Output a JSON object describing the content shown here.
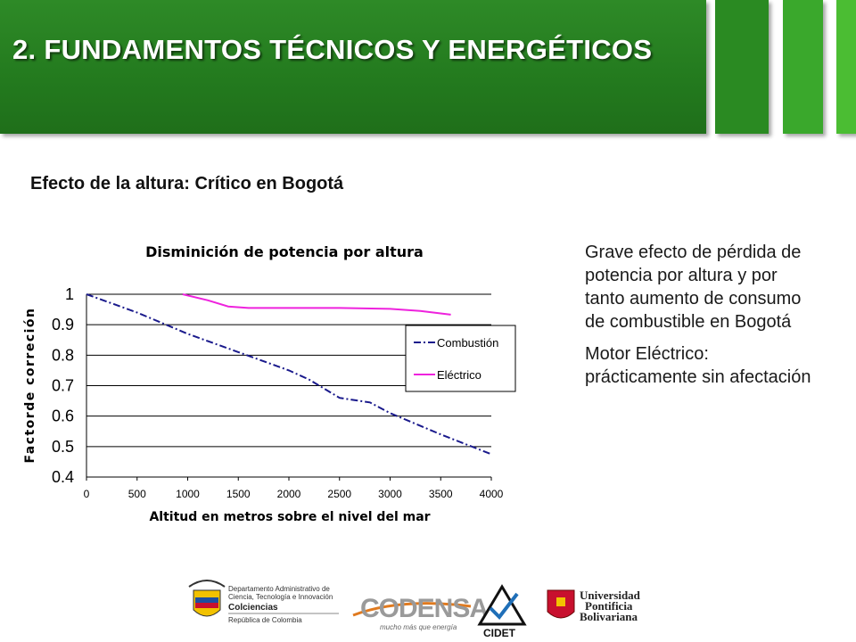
{
  "header": {
    "title": "2. FUNDAMENTOS TÉCNICOS Y ENERGÉTICOS"
  },
  "subtitle": "Efecto de la altura: Crítico en Bogotá",
  "bullets": [
    "Grave efecto de pérdida de potencia por altura y por tanto aumento de consumo de combustible en Bogotá",
    "Motor Eléctrico: prácticamente sin afectación"
  ],
  "chart_data": {
    "type": "line",
    "title": "Disminición de potencia  por altura",
    "xlabel": "Altitud en metros sobre el nivel del mar",
    "ylabel": "Factorde correción",
    "xlim": [
      0,
      4000
    ],
    "ylim": [
      0.4,
      1.0
    ],
    "xticks": [
      0,
      500,
      1000,
      1500,
      2000,
      2500,
      3000,
      3500,
      4000
    ],
    "yticks": [
      0.4,
      0.5,
      0.6,
      0.7,
      0.8,
      0.9,
      1.0
    ],
    "ytick_labels": [
      "0.4",
      "0.5",
      "0.6",
      "0.7",
      "0.8",
      "0.9",
      "1"
    ],
    "grid": "horizontal",
    "legend": "right",
    "series": [
      {
        "name": "Combustión",
        "color": "#1a1a8c",
        "style": "dash-dot",
        "x": [
          0,
          500,
          1000,
          1500,
          2000,
          2200,
          2500,
          2800,
          3000,
          3500,
          4000
        ],
        "y": [
          1.0,
          0.94,
          0.87,
          0.81,
          0.75,
          0.72,
          0.66,
          0.645,
          0.61,
          0.54,
          0.475
        ]
      },
      {
        "name": "Eléctrico",
        "color": "#ee22dd",
        "style": "solid",
        "x": [
          950,
          1200,
          1400,
          1600,
          2000,
          2500,
          3000,
          3300,
          3600
        ],
        "y": [
          1.0,
          0.98,
          0.96,
          0.955,
          0.955,
          0.955,
          0.952,
          0.945,
          0.933
        ]
      }
    ]
  },
  "logos": {
    "colciencias_lines": [
      "Departamento Administrativo de",
      "Ciencia, Tecnología e Innovación",
      "Colciencias",
      "República de Colombia"
    ],
    "codensa": "CODENSA",
    "codensa_tagline": "mucho más que energía",
    "cidet": "CIDET",
    "upb_lines": [
      "Universidad",
      "Pontificia",
      "Bolivariana"
    ]
  }
}
